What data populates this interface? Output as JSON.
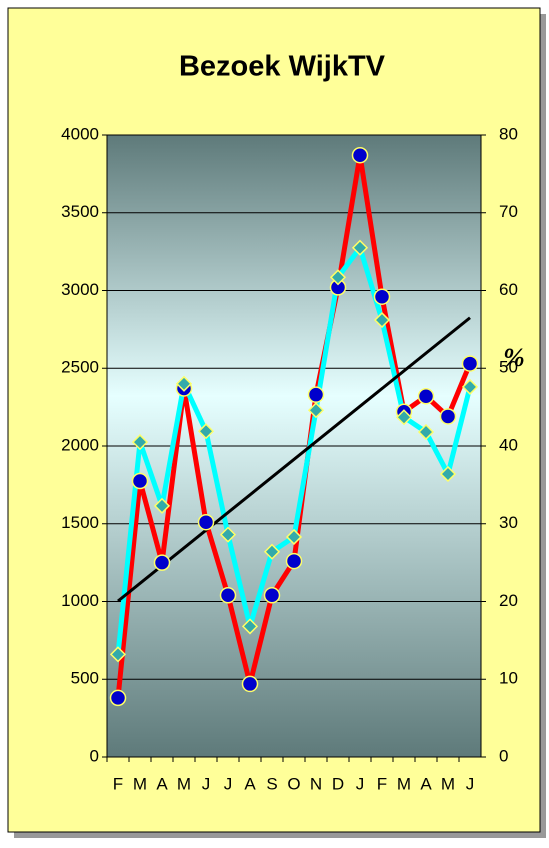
{
  "chart_data": {
    "type": "line",
    "title": "Bezoek WijkTV",
    "y2_label": "%",
    "categories": [
      "F",
      "M",
      "A",
      "M",
      "J",
      "J",
      "A",
      "S",
      "O",
      "N",
      "D",
      "J",
      "F",
      "M",
      "A",
      "M",
      "J"
    ],
    "series": [
      {
        "color": "#ff0000",
        "marker_color": "#0000cc",
        "marker": "circle",
        "values": [
          380,
          1775,
          1250,
          2370,
          1510,
          1040,
          470,
          1040,
          1260,
          2330,
          3020,
          3870,
          2960,
          2220,
          2320,
          2190,
          2530
        ]
      },
      {
        "color": "#00ffff",
        "marker_color": "#33aaaa",
        "marker": "diamond",
        "axis": "y2",
        "values": [
          13.2,
          40.5,
          32.3,
          48.0,
          41.9,
          28.6,
          16.8,
          26.4,
          28.3,
          44.6,
          61.7,
          65.5,
          56.2,
          43.7,
          41.8,
          36.4,
          47.6
        ]
      }
    ],
    "trendline": true,
    "ylim": [
      0,
      4000
    ],
    "yticks": [
      0,
      500,
      1000,
      1500,
      2000,
      2500,
      3000,
      3500,
      4000
    ],
    "y2lim": [
      0,
      80
    ],
    "y2ticks": [
      0,
      10,
      20,
      30,
      40,
      50,
      60,
      70,
      80
    ],
    "grid": true
  }
}
